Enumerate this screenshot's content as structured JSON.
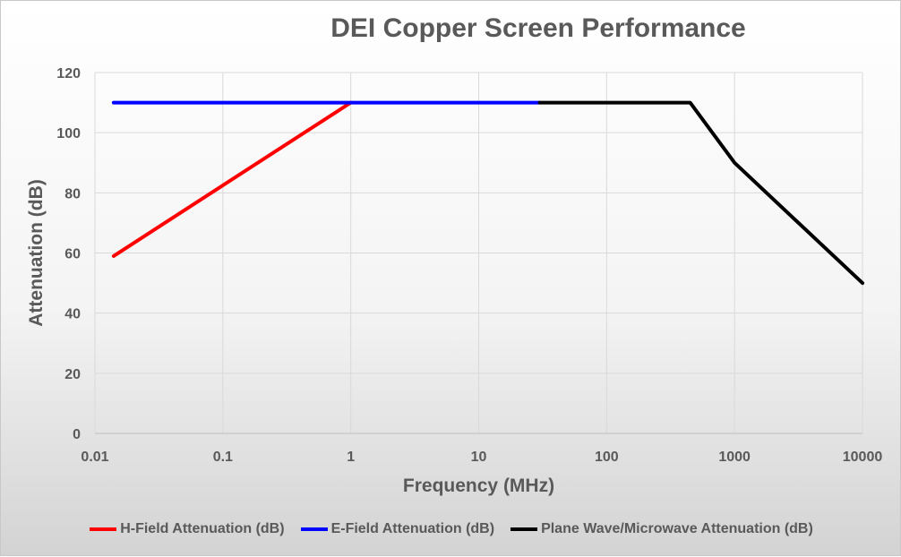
{
  "chart_data": {
    "type": "line",
    "title": "DEI Copper Screen Performance",
    "xlabel": "Frequency (MHz)",
    "ylabel": "Attenuation (dB)",
    "x_scale": "log",
    "xlim": [
      0.01,
      10000
    ],
    "ylim": [
      0,
      120
    ],
    "x_ticks": [
      "0.01",
      "0.1",
      "1",
      "10",
      "100",
      "1000",
      "10000"
    ],
    "y_ticks": [
      "0",
      "20",
      "40",
      "60",
      "80",
      "100",
      "120"
    ],
    "grid": true,
    "legend_position": "bottom",
    "series": [
      {
        "name": "H-Field Attenuation (dB)",
        "color": "#ff0000",
        "points": [
          [
            0.014,
            59
          ],
          [
            1,
            110
          ]
        ]
      },
      {
        "name": "E-Field Attenuation (dB)",
        "color": "#0000ff",
        "points": [
          [
            0.014,
            110
          ],
          [
            30,
            110
          ]
        ]
      },
      {
        "name": "Plane Wave/Microwave Attenuation (dB)",
        "color": "#000000",
        "points": [
          [
            30,
            110
          ],
          [
            450,
            110
          ],
          [
            1000,
            90
          ],
          [
            10000,
            50
          ]
        ]
      }
    ]
  }
}
